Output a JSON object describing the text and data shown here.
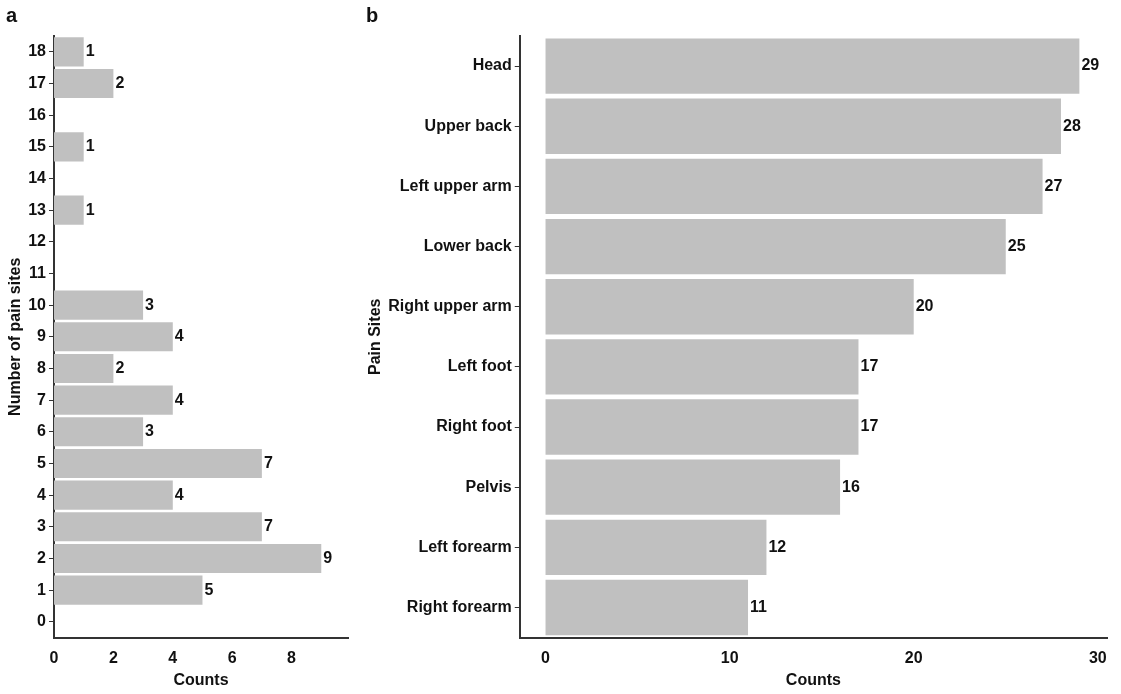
{
  "chart_data": [
    {
      "type": "bar",
      "title": "a",
      "orientation": "horizontal",
      "xlabel": "Counts",
      "ylabel": "Number of pain sites",
      "categories": [
        "18",
        "17",
        "16",
        "15",
        "14",
        "13",
        "12",
        "11",
        "10",
        "9",
        "8",
        "7",
        "6",
        "5",
        "4",
        "3",
        "2",
        "1",
        "0"
      ],
      "series": [
        {
          "color": "#c0c0c0",
          "values": [
            1,
            2,
            null,
            1,
            null,
            1,
            null,
            null,
            3,
            4,
            2,
            4,
            3,
            7,
            4,
            7,
            9,
            5,
            null
          ]
        }
      ],
      "xlim": [
        0,
        9.9
      ],
      "xticks": [
        0,
        2,
        4,
        6,
        8
      ],
      "data_labels": true,
      "grid": false,
      "legend": false
    },
    {
      "type": "bar",
      "title": "b",
      "orientation": "horizontal",
      "xlabel": "Counts",
      "ylabel": "Pain Sites",
      "categories": [
        "Head",
        "Upper back",
        "Left upper arm",
        "Lower back",
        "Right upper arm",
        "Left foot",
        "Right foot",
        "Pelvis",
        "Left forearm",
        "Right forearm"
      ],
      "series": [
        {
          "color": "#c0c0c0",
          "values": [
            29,
            28,
            27,
            25,
            20,
            17,
            17,
            16,
            12,
            11
          ]
        }
      ],
      "xlim": [
        -1.4,
        30.5
      ],
      "xticks": [
        0,
        10,
        20,
        30
      ],
      "data_labels": true,
      "grid": false,
      "legend": false
    }
  ]
}
